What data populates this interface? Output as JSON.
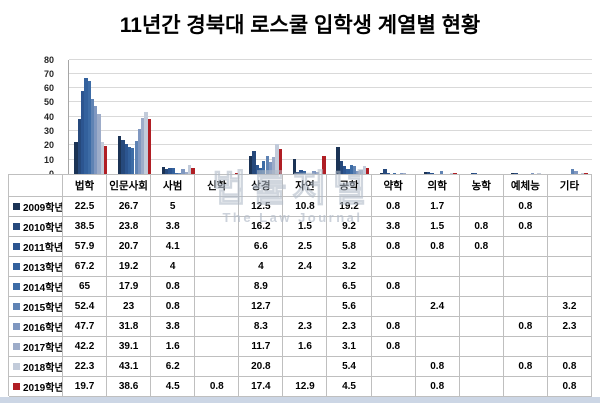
{
  "title": "11년간 경북대 로스쿨 입학생 계열별 현황",
  "watermark": {
    "korean": "법률저널",
    "english": "The Law Journal"
  },
  "axis": {
    "yticks": [
      80,
      70,
      60,
      50,
      40,
      30,
      20,
      10,
      0
    ]
  },
  "chart_data": {
    "type": "bar",
    "title": "11년간 경북대 로스쿨 입학생 계열별 현황",
    "categories": [
      "법학",
      "인문사회",
      "사범",
      "신학",
      "상경",
      "자연",
      "공학",
      "약학",
      "의학",
      "농학",
      "예체능",
      "기타"
    ],
    "xlabel": "",
    "ylabel": "",
    "ylim": [
      0,
      80
    ],
    "ytick_interval": 10,
    "grid": true,
    "legend_position": "data-table-row-headers",
    "series": [
      {
        "name": "2009학년",
        "color": "#1B3355",
        "values": [
          22.5,
          26.7,
          5,
          null,
          12.5,
          10.8,
          19.2,
          0.8,
          1.7,
          null,
          0.8,
          null
        ]
      },
      {
        "name": "2010학년",
        "color": "#26497C",
        "values": [
          38.5,
          23.8,
          3.8,
          null,
          16.2,
          1.5,
          9.2,
          3.8,
          1.5,
          0.8,
          0.8,
          null
        ]
      },
      {
        "name": "2011학년",
        "color": "#2C5590",
        "values": [
          57.9,
          20.7,
          4.1,
          null,
          6.6,
          2.5,
          5.8,
          0.8,
          0.8,
          0.8,
          null,
          null
        ]
      },
      {
        "name": "2013학년",
        "color": "#33619D",
        "values": [
          67.2,
          19.2,
          4,
          null,
          4,
          2.4,
          3.2,
          null,
          null,
          null,
          null,
          null
        ]
      },
      {
        "name": "2014학년",
        "color": "#3D6CA6",
        "values": [
          65,
          17.9,
          0.8,
          null,
          8.9,
          null,
          6.5,
          0.8,
          null,
          null,
          null,
          null
        ]
      },
      {
        "name": "2015학년",
        "color": "#5F83B4",
        "values": [
          52.4,
          23,
          0.8,
          null,
          12.7,
          null,
          5.6,
          null,
          2.4,
          null,
          null,
          3.2
        ]
      },
      {
        "name": "2016학년",
        "color": "#7F97C0",
        "values": [
          47.7,
          31.8,
          3.8,
          null,
          8.3,
          2.3,
          2.3,
          0.8,
          null,
          null,
          0.8,
          2.3
        ]
      },
      {
        "name": "2017학년",
        "color": "#9DACC9",
        "values": [
          42.2,
          39.1,
          1.6,
          null,
          11.7,
          1.6,
          3.1,
          0.8,
          null,
          null,
          null,
          null
        ]
      },
      {
        "name": "2018학년",
        "color": "#C2CBDA",
        "values": [
          22.3,
          43.1,
          6.2,
          null,
          20.8,
          null,
          5.4,
          null,
          0.8,
          null,
          0.8,
          0.8
        ]
      },
      {
        "name": "2019학년",
        "color": "#B01E24",
        "values": [
          19.7,
          38.6,
          4.5,
          0.8,
          17.4,
          12.9,
          4.5,
          null,
          0.8,
          null,
          null,
          0.8
        ]
      }
    ]
  }
}
